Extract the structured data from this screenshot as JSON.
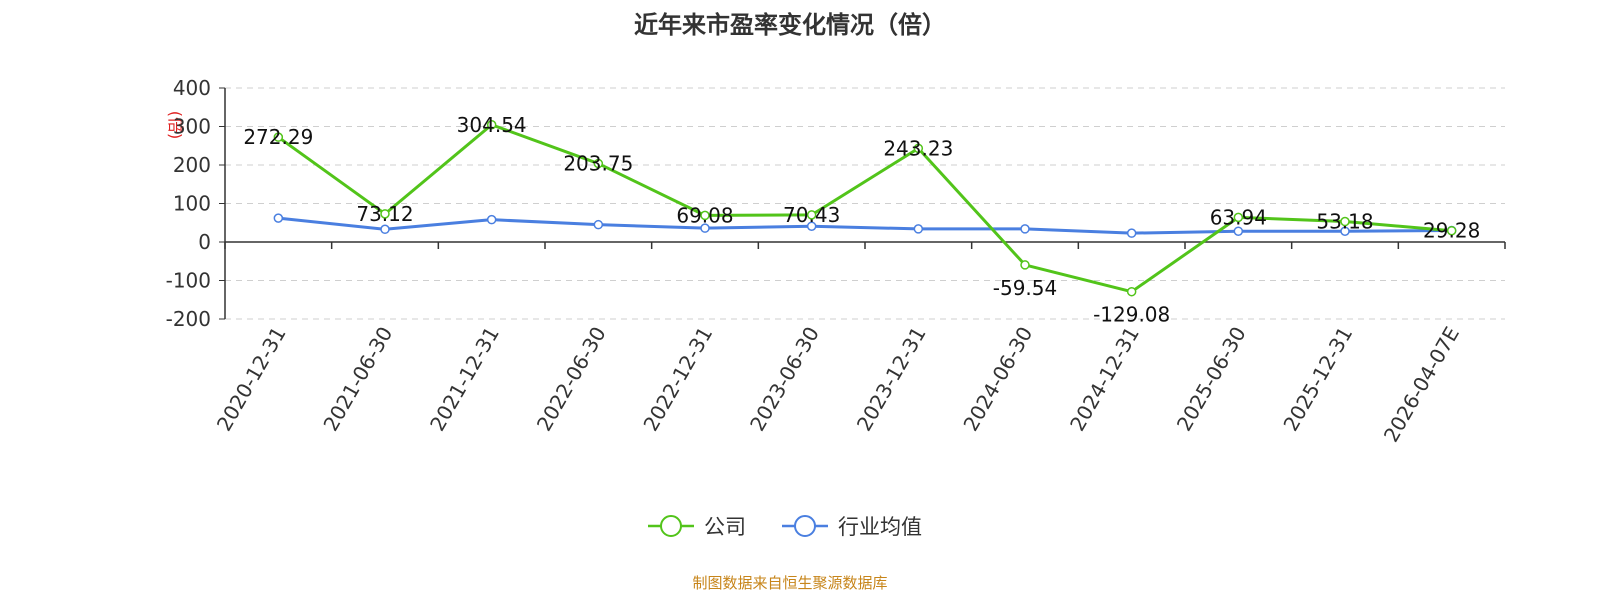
{
  "chart_data": {
    "type": "line",
    "title": "近年来市盈率变化情况（倍）",
    "ylabel": "(倍)",
    "xlabel": "",
    "categories": [
      "2020-12-31",
      "2021-06-30",
      "2021-12-31",
      "2022-06-30",
      "2022-12-31",
      "2023-06-30",
      "2023-12-31",
      "2024-06-30",
      "2024-12-31",
      "2025-06-30",
      "2025-12-31",
      "2026-04-07E"
    ],
    "ylim": [
      -200,
      400
    ],
    "yticks": [
      -200,
      -100,
      0,
      100,
      200,
      300,
      400
    ],
    "grid": true,
    "legend_position": "bottom",
    "series": [
      {
        "name": "公司",
        "color": "#52c41a",
        "show_labels": true,
        "labels": [
          "272.29",
          "73.12",
          "304.54",
          "203.75",
          "69.08",
          "70.43",
          "243.23",
          "-59.54",
          "-129.08",
          "63.94",
          "53.18",
          "29.28"
        ],
        "values": [
          272.29,
          73.12,
          304.54,
          203.75,
          69.08,
          70.43,
          243.23,
          -59.54,
          -129.08,
          63.94,
          53.18,
          29.28
        ]
      },
      {
        "name": "行业均值",
        "color": "#4a7fe0",
        "show_labels": false,
        "values": [
          62,
          33,
          58,
          45,
          36,
          41,
          34,
          34,
          23,
          28,
          28,
          30
        ]
      }
    ],
    "source": "制图数据来自恒生聚源数据库",
    "source_color": "#c7851a",
    "ylabel_color": "#e02020"
  }
}
